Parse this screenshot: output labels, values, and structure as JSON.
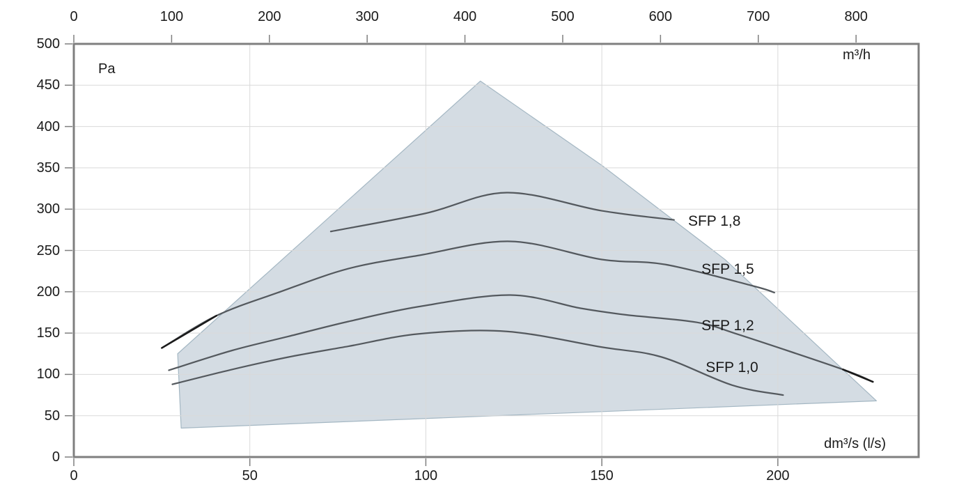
{
  "chart_data": {
    "type": "line",
    "title": "",
    "description": "Fan performance diagram: pressure (Pa) vs airflow with SFP curves and shaded operating envelope",
    "axes": {
      "y": {
        "label": "Pa",
        "ticks": [
          0,
          50,
          100,
          150,
          200,
          250,
          300,
          350,
          400,
          450,
          500
        ],
        "range": [
          0,
          500
        ]
      },
      "x_bottom": {
        "label": "dm³/s (l/s)",
        "ticks": [
          0,
          50,
          100,
          150,
          200
        ],
        "range": [
          0,
          240
        ]
      },
      "x_top": {
        "label": "m³/h",
        "ticks": [
          0,
          100,
          200,
          300,
          400,
          500,
          600,
          700,
          800
        ],
        "range": [
          0,
          864
        ]
      }
    },
    "grid": {
      "y_values": [
        50,
        100,
        150,
        200,
        250,
        300,
        350,
        400,
        450
      ],
      "x_values": [
        50,
        100,
        150,
        200
      ]
    },
    "envelope": {
      "name": "operating-area",
      "points": [
        [
          29.5,
          125
        ],
        [
          115.5,
          455
        ],
        [
          150,
          353
        ],
        [
          185,
          239
        ],
        [
          228,
          68
        ],
        [
          30.5,
          35
        ]
      ]
    },
    "series": [
      {
        "name": "SFP 1,8",
        "points": [
          [
            73,
            273
          ],
          [
            100,
            295
          ],
          [
            123,
            320
          ],
          [
            150,
            298
          ],
          [
            170.5,
            287
          ]
        ],
        "label_anchor": [
          174.5,
          285
        ]
      },
      {
        "name": "SFP 1,5",
        "points": [
          [
            25,
            132
          ],
          [
            40.5,
            171
          ],
          [
            58,
            199
          ],
          [
            78,
            228
          ],
          [
            98,
            244
          ],
          [
            124,
            261
          ],
          [
            150,
            239
          ],
          [
            168,
            233
          ],
          [
            193,
            207
          ],
          [
            199,
            199
          ]
        ],
        "dark_tail": [
          [
            25,
            132
          ],
          [
            40.5,
            171
          ]
        ],
        "label_anchor": [
          178.3,
          227
        ]
      },
      {
        "name": "SFP 1,2",
        "points": [
          [
            27,
            105
          ],
          [
            45,
            129
          ],
          [
            61,
            146
          ],
          [
            78,
            164
          ],
          [
            98,
            182
          ],
          [
            124,
            196
          ],
          [
            144,
            180
          ],
          [
            157,
            172
          ],
          [
            177,
            163
          ],
          [
            189,
            148
          ],
          [
            218.5,
            106
          ],
          [
            227,
            91
          ]
        ],
        "dark_tail": [
          [
            218.5,
            106
          ],
          [
            227,
            91
          ]
        ],
        "label_anchor": [
          178.3,
          158.5
        ]
      },
      {
        "name": "SFP 1,0",
        "points": [
          [
            28,
            88
          ],
          [
            45,
            106
          ],
          [
            61,
            121
          ],
          [
            78,
            134
          ],
          [
            98,
            149
          ],
          [
            123,
            152
          ],
          [
            150,
            133
          ],
          [
            167,
            121
          ],
          [
            187,
            87
          ],
          [
            201.5,
            75
          ]
        ],
        "label_anchor": [
          179.5,
          108
        ]
      }
    ],
    "colors": {
      "envelope_fill": "#ccd6de",
      "envelope_stroke": "#a4b7c3",
      "curve": "#54595e",
      "tail": "#1a1a1a",
      "grid": "#d9d9d9",
      "border": "#7f7f7f",
      "tick": "#7f7f7f",
      "text": "#1a1a1a"
    }
  }
}
